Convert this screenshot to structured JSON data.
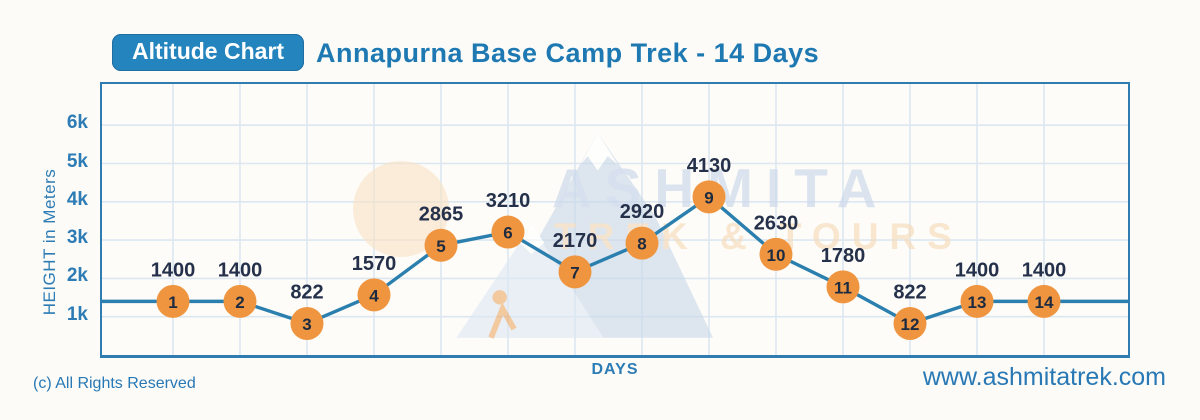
{
  "header": {
    "badge_label": "Altitude Chart",
    "title": "Annapurna Base Camp Trek - 14 Days"
  },
  "chart_data": {
    "type": "line",
    "title": "Annapurna Base Camp Trek - 14 Days",
    "xlabel": "DAYS",
    "ylabel": "HEIGHT in Meters",
    "x": [
      1,
      2,
      3,
      4,
      5,
      6,
      7,
      8,
      9,
      10,
      11,
      12,
      13,
      14
    ],
    "values": [
      1400,
      1400,
      822,
      1570,
      2865,
      3210,
      2170,
      2920,
      4130,
      2630,
      1780,
      822,
      1400,
      1400
    ],
    "ylim": [
      0,
      7000
    ],
    "yticks": [
      {
        "label": "1k",
        "value": 1000
      },
      {
        "label": "2k",
        "value": 2000
      },
      {
        "label": "3k",
        "value": 3000
      },
      {
        "label": "4k",
        "value": 4000
      },
      {
        "label": "5k",
        "value": 5000
      },
      {
        "label": "6k",
        "value": 6000
      }
    ],
    "edge_value": 1400,
    "grid": true,
    "colors": {
      "line": "#2b7fae",
      "marker": "#f0953f",
      "marker_text": "#1c2b40",
      "value_label": "#25314a",
      "gridline": "#dce7f1",
      "axis_border": "#2e7cb0"
    }
  },
  "watermark": {
    "line1": "ASHMITA",
    "line2": "TREK & TOURS"
  },
  "footer": {
    "copyright": "(c) All Rights Reserved",
    "website": "www.ashmitatrek.com"
  }
}
